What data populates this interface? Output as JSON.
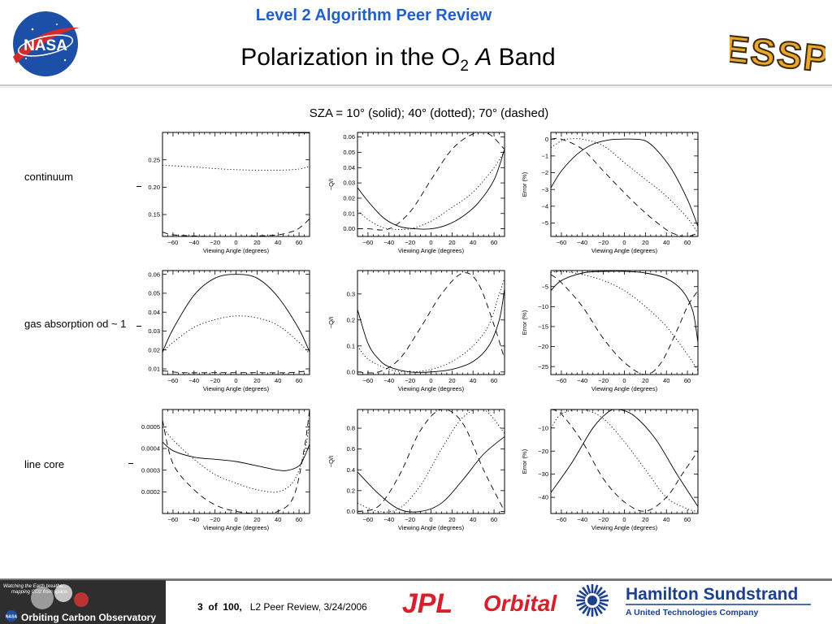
{
  "header": {
    "super_title": "Level 2 Algorithm Peer Review",
    "title_main": "Polarization in the O",
    "title_sub": "2",
    "title_italic": "A",
    "title_end": "Band",
    "nasa_logo": "NASA",
    "essp_logo": "ESSP"
  },
  "caption": "SZA = 10° (solid); 40° (dotted); 70° (dashed)",
  "row_labels": [
    "continuum",
    "gas absorption od ~ 1",
    "line core"
  ],
  "footer": {
    "page_current": "3",
    "page_of": "of",
    "page_total": "100,",
    "review_text": "L2 Peer Review, 3/24/2006",
    "oco_tagline_1": "Watching the Earth breathe...",
    "oco_tagline_2": "mapping CO2 from space.",
    "oco_name": "Orbiting Carbon Observatory",
    "oco_nasa": "NASA",
    "jpl_logo": "JPL",
    "orbital_logo": "Orbital",
    "hs_logo_1": "Hamilton Sundstrand",
    "hs_logo_2": "A United Technologies Company"
  },
  "colors": {
    "super_title": "#1f5fd0",
    "jpl_red": "#d8202a",
    "hs_blue": "#1c3f8e"
  },
  "chart_data": [
    {
      "type": "line",
      "row": "continuum",
      "col": 1,
      "xlabel": "Viewing Angle (degrees)",
      "ylabel": "",
      "xlim": [
        -70,
        70
      ],
      "ylim": [
        0.11,
        0.3
      ],
      "xticks": [
        -60,
        -40,
        -20,
        0,
        20,
        40,
        60
      ],
      "yticks": [
        0.15,
        0.2,
        0.25
      ],
      "ytick_labels": [
        "0.15",
        "0.20",
        "0.25"
      ],
      "series": [
        {
          "style": "solid",
          "x": [
            -70,
            -40,
            0,
            40,
            70
          ],
          "y": [
            0.3,
            0.3,
            0.3,
            0.3,
            0.299
          ]
        },
        {
          "style": "dotted",
          "x": [
            -70,
            -40,
            -20,
            0,
            20,
            40,
            60,
            70
          ],
          "y": [
            0.24,
            0.237,
            0.234,
            0.232,
            0.231,
            0.231,
            0.233,
            0.238
          ]
        },
        {
          "style": "dashed",
          "x": [
            -70,
            -60,
            -40,
            -20,
            0,
            20,
            40,
            55,
            62,
            70
          ],
          "y": [
            0.118,
            0.113,
            0.111,
            0.11,
            0.11,
            0.111,
            0.113,
            0.12,
            0.128,
            0.142
          ]
        }
      ]
    },
    {
      "type": "line",
      "row": "continuum",
      "col": 2,
      "xlabel": "Viewing Angle (degrees)",
      "ylabel": "−Q/I",
      "xlim": [
        -70,
        70
      ],
      "ylim": [
        -0.005,
        0.063
      ],
      "xticks": [
        -60,
        -40,
        -20,
        0,
        20,
        40,
        60
      ],
      "yticks": [
        0,
        0.01,
        0.02,
        0.03,
        0.04,
        0.05,
        0.06
      ],
      "ytick_labels": [
        "0.00",
        "0.01",
        "0.02",
        "0.03",
        "0.04",
        "0.05",
        "0.06"
      ],
      "series": [
        {
          "style": "solid",
          "x": [
            -70,
            -60,
            -45,
            -30,
            -15,
            0,
            15,
            30,
            45,
            60,
            70
          ],
          "y": [
            0.027,
            0.018,
            0.007,
            0.0015,
            0,
            0,
            0.0025,
            0.008,
            0.017,
            0.032,
            0.052
          ]
        },
        {
          "style": "dotted",
          "x": [
            -70,
            -60,
            -50,
            -40,
            -20,
            0,
            20,
            40,
            60,
            70
          ],
          "y": [
            0.012,
            0.006,
            0.002,
            0,
            0,
            0.005,
            0.014,
            0.024,
            0.04,
            0.051
          ]
        },
        {
          "style": "dashed",
          "x": [
            -70,
            -60,
            -40,
            -20,
            0,
            20,
            40,
            55,
            70
          ],
          "y": [
            0,
            0,
            0,
            0.011,
            0.032,
            0.052,
            0.062,
            0.062,
            0.052
          ]
        }
      ]
    },
    {
      "type": "line",
      "row": "continuum",
      "col": 3,
      "xlabel": "Viewing Angle (degrees)",
      "ylabel": "Error (%)",
      "xlim": [
        -70,
        70
      ],
      "ylim": [
        -5.8,
        0.4
      ],
      "xticks": [
        -60,
        -40,
        -20,
        0,
        20,
        40,
        60
      ],
      "yticks": [
        0,
        -1,
        -2,
        -3,
        -4,
        -5
      ],
      "ytick_labels": [
        "0",
        "−1",
        "−2",
        "−3",
        "−4",
        "−5"
      ],
      "series": [
        {
          "style": "solid",
          "x": [
            -70,
            -60,
            -45,
            -30,
            -15,
            -5,
            10,
            20,
            30,
            45,
            60,
            70
          ],
          "y": [
            -2.9,
            -1.9,
            -0.9,
            -0.3,
            -0.05,
            0,
            0,
            -0.1,
            -0.6,
            -1.8,
            -3.6,
            -5.2
          ]
        },
        {
          "style": "dotted",
          "x": [
            -70,
            -60,
            -55,
            -40,
            -20,
            0,
            20,
            40,
            60,
            70
          ],
          "y": [
            -0.5,
            -0.1,
            0,
            0,
            -0.4,
            -1.4,
            -2.4,
            -3.4,
            -4.7,
            -5.6
          ]
        },
        {
          "style": "dashed",
          "x": [
            -70,
            -60,
            -40,
            -20,
            0,
            20,
            40,
            50,
            60,
            70
          ],
          "y": [
            0,
            0,
            -0.6,
            -1.9,
            -3.2,
            -4.4,
            -5.4,
            -5.7,
            -5.8,
            -5.6
          ]
        }
      ]
    },
    {
      "type": "line",
      "row": "gas absorption od ~ 1",
      "col": 1,
      "xlabel": "Viewing Angle (degrees)",
      "ylabel": "",
      "xlim": [
        -70,
        70
      ],
      "ylim": [
        0.007,
        0.062
      ],
      "xticks": [
        -60,
        -40,
        -20,
        0,
        20,
        40,
        60
      ],
      "yticks": [
        0.01,
        0.02,
        0.03,
        0.04,
        0.05,
        0.06
      ],
      "ytick_labels": [
        "0.01",
        "0.02",
        "0.03",
        "0.04",
        "0.05",
        "0.06"
      ],
      "series": [
        {
          "style": "solid",
          "x": [
            -70,
            -60,
            -40,
            -20,
            0,
            20,
            40,
            60,
            70
          ],
          "y": [
            0.019,
            0.031,
            0.049,
            0.058,
            0.06,
            0.058,
            0.048,
            0.031,
            0.019
          ]
        },
        {
          "style": "dotted",
          "x": [
            -70,
            -60,
            -40,
            -20,
            0,
            20,
            40,
            60,
            70
          ],
          "y": [
            0.019,
            0.024,
            0.032,
            0.036,
            0.038,
            0.037,
            0.033,
            0.024,
            0.018
          ]
        },
        {
          "style": "dashed",
          "x": [
            -70,
            -50,
            -20,
            0,
            20,
            50,
            70
          ],
          "y": [
            0.009,
            0.008,
            0.008,
            0.008,
            0.008,
            0.008,
            0.009
          ]
        }
      ]
    },
    {
      "type": "line",
      "row": "gas absorption od ~ 1",
      "col": 2,
      "xlabel": "Viewing Angle (degrees)",
      "ylabel": "−Q/I",
      "xlim": [
        -70,
        70
      ],
      "ylim": [
        -0.01,
        0.39
      ],
      "xticks": [
        -60,
        -40,
        -20,
        0,
        20,
        40,
        60
      ],
      "yticks": [
        0,
        0.1,
        0.2,
        0.3
      ],
      "ytick_labels": [
        "0.0",
        "0.1",
        "0.2",
        "0.3"
      ],
      "series": [
        {
          "style": "solid",
          "x": [
            -70,
            -60,
            -50,
            -40,
            -20,
            0,
            20,
            40,
            55,
            65,
            70
          ],
          "y": [
            0.24,
            0.11,
            0.05,
            0.02,
            0,
            0,
            0.01,
            0.04,
            0.1,
            0.2,
            0.32
          ]
        },
        {
          "style": "dotted",
          "x": [
            -70,
            -60,
            -40,
            -20,
            0,
            20,
            40,
            55,
            65,
            70
          ],
          "y": [
            0.1,
            0.05,
            0.01,
            0,
            0.01,
            0.04,
            0.1,
            0.18,
            0.3,
            0.36
          ]
        },
        {
          "style": "dashed",
          "x": [
            -70,
            -50,
            -30,
            -10,
            10,
            30,
            45,
            60,
            70
          ],
          "y": [
            0,
            0,
            0.05,
            0.17,
            0.3,
            0.38,
            0.34,
            0.18,
            0.05
          ]
        }
      ]
    },
    {
      "type": "line",
      "row": "gas absorption od ~ 1",
      "col": 3,
      "xlabel": "Viewing Angle (degrees)",
      "ylabel": "Error (%)",
      "xlim": [
        -70,
        70
      ],
      "ylim": [
        -27,
        -1
      ],
      "xticks": [
        -60,
        -40,
        -20,
        0,
        20,
        40,
        60
      ],
      "yticks": [
        -5,
        -10,
        -15,
        -20,
        -25
      ],
      "ytick_labels": [
        "−5",
        "−10",
        "−15",
        "−20",
        "−25"
      ],
      "series": [
        {
          "style": "solid",
          "x": [
            -70,
            -60,
            -40,
            -20,
            0,
            20,
            40,
            55,
            65,
            70
          ],
          "y": [
            -6,
            -3.5,
            -1.6,
            -1.2,
            -1.2,
            -1.6,
            -3,
            -6,
            -11,
            -19
          ]
        },
        {
          "style": "dotted",
          "x": [
            -70,
            -60,
            -40,
            -20,
            0,
            20,
            40,
            60,
            70
          ],
          "y": [
            -1.5,
            -1.2,
            -2,
            -3.5,
            -6,
            -10,
            -15,
            -22,
            -26
          ]
        },
        {
          "style": "dashed",
          "x": [
            -70,
            -60,
            -40,
            -20,
            0,
            20,
            35,
            50,
            60,
            70
          ],
          "y": [
            -2,
            -4,
            -10,
            -18,
            -24,
            -27,
            -24,
            -16,
            -10,
            -6
          ]
        }
      ]
    },
    {
      "type": "line",
      "row": "line core",
      "col": 1,
      "xlabel": "Viewing Angle (degrees)",
      "ylabel": "",
      "xlim": [
        -70,
        70
      ],
      "ylim": [
        0.0001,
        0.00058
      ],
      "xticks": [
        -60,
        -40,
        -20,
        0,
        20,
        40,
        60
      ],
      "yticks": [
        0.0002,
        0.0003,
        0.0004,
        0.0005
      ],
      "ytick_labels": [
        "0.0002",
        "0.0003",
        "0.0004",
        "0.0005"
      ],
      "series": [
        {
          "style": "solid",
          "x": [
            -70,
            -60,
            -40,
            -20,
            0,
            20,
            40,
            50,
            60,
            65,
            70
          ],
          "y": [
            0.00043,
            0.00039,
            0.00036,
            0.00035,
            0.00034,
            0.00032,
            0.0003,
            0.0003,
            0.00032,
            0.00036,
            0.00042
          ]
        },
        {
          "style": "dotted",
          "x": [
            -70,
            -60,
            -40,
            -20,
            0,
            20,
            40,
            55,
            65,
            70
          ],
          "y": [
            0.0005,
            0.00044,
            0.00035,
            0.00028,
            0.00024,
            0.00021,
            0.0002,
            0.00025,
            0.00038,
            0.00052
          ]
        },
        {
          "style": "dashed",
          "x": [
            -70,
            -60,
            -40,
            -20,
            0,
            20,
            40,
            55,
            65,
            70
          ],
          "y": [
            0.00053,
            0.00033,
            0.00021,
            0.00014,
            0.00011,
            0.0001,
            0.00011,
            0.00018,
            0.0004,
            0.00058
          ]
        }
      ]
    },
    {
      "type": "line",
      "row": "line core",
      "col": 2,
      "xlabel": "Viewing Angle (degrees)",
      "ylabel": "−Q/I",
      "xlim": [
        -70,
        70
      ],
      "ylim": [
        -0.02,
        0.98
      ],
      "xticks": [
        -60,
        -40,
        -20,
        0,
        20,
        40,
        60
      ],
      "yticks": [
        0,
        0.2,
        0.4,
        0.6,
        0.8
      ],
      "ytick_labels": [
        "0.0",
        "0.2",
        "0.4",
        "0.6",
        "0.8"
      ],
      "series": [
        {
          "style": "solid",
          "x": [
            -70,
            -50,
            -30,
            -10,
            10,
            30,
            50,
            70
          ],
          "y": [
            0.38,
            0.17,
            0.02,
            0,
            0.08,
            0.3,
            0.55,
            0.72
          ]
        },
        {
          "style": "dotted",
          "x": [
            -70,
            -50,
            -30,
            -10,
            10,
            30,
            50,
            70
          ],
          "y": [
            0.08,
            0,
            0.03,
            0.25,
            0.6,
            0.9,
            0.98,
            0.75
          ]
        },
        {
          "style": "dashed",
          "x": [
            -70,
            -50,
            -30,
            -10,
            10,
            30,
            50,
            70
          ],
          "y": [
            0,
            0.05,
            0.35,
            0.78,
            0.98,
            0.85,
            0.4,
            0
          ]
        }
      ]
    },
    {
      "type": "line",
      "row": "line core",
      "col": 3,
      "xlabel": "Viewing Angle (degrees)",
      "ylabel": "Error (%)",
      "xlim": [
        -70,
        70
      ],
      "ylim": [
        -47,
        -2
      ],
      "xticks": [
        -60,
        -40,
        -20,
        0,
        20,
        40,
        60
      ],
      "yticks": [
        -10,
        -20,
        -30,
        -40
      ],
      "ytick_labels": [
        "−10",
        "−20",
        "−30",
        "−40"
      ],
      "series": [
        {
          "style": "solid",
          "x": [
            -70,
            -50,
            -30,
            -15,
            -5,
            10,
            30,
            50,
            70
          ],
          "y": [
            -38,
            -25,
            -10,
            -3,
            -2,
            -5,
            -15,
            -30,
            -44
          ]
        },
        {
          "style": "dotted",
          "x": [
            -70,
            -60,
            -40,
            -20,
            0,
            20,
            40,
            60,
            70
          ],
          "y": [
            -10,
            -4,
            -2,
            -6,
            -16,
            -28,
            -40,
            -45,
            -46
          ]
        },
        {
          "style": "dashed",
          "x": [
            -70,
            -60,
            -40,
            -20,
            0,
            20,
            40,
            55,
            70
          ],
          "y": [
            -2,
            -4,
            -16,
            -32,
            -42,
            -46,
            -40,
            -30,
            -20
          ]
        }
      ]
    }
  ]
}
